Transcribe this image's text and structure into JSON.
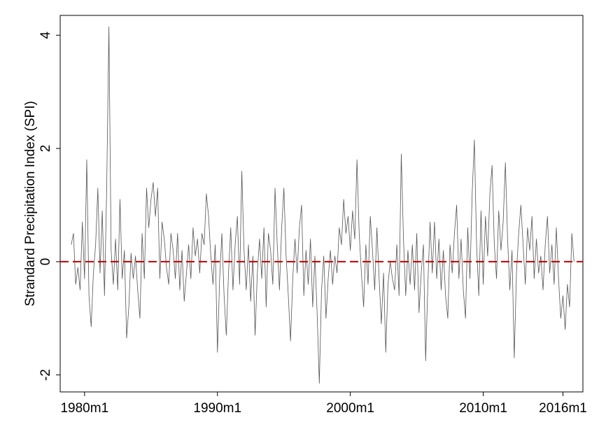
{
  "chart_data": {
    "type": "line",
    "y_label": "Strandard Precipitation Index (SPI)",
    "x": [
      228,
      230,
      232,
      234,
      236,
      238,
      240,
      242,
      244,
      246,
      248,
      250,
      252,
      254,
      256,
      258,
      260,
      262,
      264,
      266,
      268,
      270,
      272,
      274,
      276,
      278,
      280,
      282,
      284,
      286,
      288,
      290,
      292,
      294,
      296,
      298,
      300,
      302,
      304,
      306,
      308,
      310,
      312,
      314,
      316,
      318,
      320,
      322,
      324,
      326,
      328,
      330,
      332,
      334,
      336,
      338,
      340,
      342,
      344,
      346,
      348,
      350,
      352,
      354,
      356,
      358,
      360,
      362,
      364,
      366,
      368,
      370,
      372,
      374,
      376,
      378,
      380,
      382,
      384,
      386,
      388,
      390,
      392,
      394,
      396,
      398,
      400,
      402,
      404,
      406,
      408,
      410,
      412,
      414,
      416,
      418,
      420,
      422,
      424,
      426,
      428,
      430,
      432,
      434,
      436,
      438,
      440,
      442,
      444,
      446,
      448,
      450,
      452,
      454,
      456,
      458,
      460,
      462,
      464,
      466,
      468,
      470,
      472,
      474,
      476,
      478,
      480,
      482,
      484,
      486,
      488,
      490,
      492,
      494,
      496,
      498,
      500,
      502,
      504,
      506,
      508,
      510,
      512,
      514,
      516,
      518,
      520,
      522,
      524,
      526,
      528,
      530,
      532,
      534,
      536,
      538,
      540,
      542,
      544,
      546,
      548,
      550,
      552,
      554,
      556,
      558,
      560,
      562,
      564,
      566,
      568,
      570,
      572,
      574,
      576,
      578,
      580,
      582,
      584,
      586,
      588,
      590,
      592,
      594,
      596,
      598,
      600,
      602,
      604,
      606,
      608,
      610,
      612,
      614,
      616,
      618,
      620,
      622,
      624,
      626,
      628,
      630,
      632,
      634,
      636,
      638,
      640,
      642,
      644,
      646,
      648,
      650,
      652,
      654,
      656,
      658,
      660,
      662,
      664,
      666,
      668,
      670,
      672,
      674,
      676,
      678,
      680,
      682
    ],
    "series": [
      {
        "color": "#555555",
        "values": [
          0.3,
          0.5,
          -0.4,
          -0.1,
          -0.5,
          0.7,
          -0.3,
          1.8,
          -0.6,
          -1.15,
          -0.2,
          0.3,
          1.3,
          -0.2,
          0.9,
          -0.6,
          1.3,
          4.15,
          0.2,
          -0.4,
          0.4,
          -0.5,
          1.1,
          -0.3,
          0.2,
          -1.35,
          -0.8,
          0.15,
          -0.3,
          0.1,
          -0.5,
          -1.0,
          0.5,
          -0.3,
          1.3,
          0.6,
          1.1,
          1.4,
          0.8,
          1.3,
          -0.3,
          0.7,
          0.4,
          -0.1,
          -0.4,
          0.5,
          0.2,
          -0.3,
          0.5,
          -0.5,
          0.2,
          -0.7,
          -0.2,
          0.3,
          -0.3,
          0.6,
          0.1,
          0.4,
          -0.2,
          0.5,
          0.3,
          1.2,
          0.8,
          0.1,
          -0.4,
          0.3,
          -1.6,
          -0.3,
          0.5,
          -0.6,
          -1.3,
          -0.2,
          0.6,
          -0.5,
          0.3,
          0.8,
          -0.4,
          1.6,
          0.2,
          -0.5,
          0.3,
          -0.7,
          0.1,
          -1.3,
          -0.2,
          0.4,
          -0.3,
          0.6,
          -0.8,
          0.5,
          0.2,
          -0.4,
          1.3,
          0.3,
          -0.5,
          0.6,
          1.3,
          0.1,
          -0.6,
          -1.4,
          -0.3,
          0.4,
          -0.2,
          0.6,
          1.0,
          -0.6,
          0.2,
          -0.4,
          0.4,
          -0.8,
          0.1,
          -0.9,
          -2.15,
          -0.5,
          0.1,
          -1.0,
          -0.3,
          0.2,
          -0.4,
          0.1,
          -0.2,
          0.6,
          0.3,
          1.1,
          0.5,
          0.8,
          0.2,
          0.9,
          0.4,
          1.8,
          0.5,
          -0.2,
          -0.8,
          0.3,
          -0.4,
          0.8,
          0.2,
          -0.5,
          0.6,
          -0.3,
          -1.1,
          -0.2,
          -1.6,
          -0.4,
          0.0,
          -0.3,
          -0.5,
          0.3,
          -0.6,
          1.9,
          0.4,
          -0.6,
          0.2,
          -0.4,
          0.3,
          -0.5,
          0.5,
          -0.9,
          -0.2,
          0.3,
          -1.75,
          -0.4,
          0.7,
          -0.2,
          0.7,
          -0.3,
          0.4,
          -0.5,
          0.2,
          -0.6,
          -1.0,
          0.3,
          -0.2,
          0.5,
          1.0,
          -0.3,
          0.4,
          -0.5,
          -1.0,
          0.6,
          -0.3,
          1.2,
          2.15,
          0.3,
          -0.6,
          0.9,
          -0.4,
          0.8,
          0.1,
          1.2,
          1.7,
          0.3,
          -0.3,
          0.9,
          0.2,
          0.7,
          1.75,
          0.4,
          -0.5,
          0.2,
          -1.7,
          -0.2,
          0.5,
          1.0,
          0.3,
          -0.4,
          0.6,
          0.2,
          0.8,
          -0.3,
          0.4,
          -0.2,
          0.1,
          -0.5,
          0.3,
          0.8,
          -0.2,
          0.3,
          -0.4,
          0.6,
          -0.3,
          -1.0,
          -0.6,
          -1.2,
          -0.4,
          -0.8,
          0.5,
          0.0
        ]
      }
    ],
    "xlim": [
      218,
      690
    ],
    "xticks": [
      {
        "value": 240,
        "label": "1980m1"
      },
      {
        "value": 360,
        "label": "1990m1"
      },
      {
        "value": 480,
        "label": "2000m1"
      },
      {
        "value": 600,
        "label": "2010m1"
      },
      {
        "value": 672,
        "label": "2016m1"
      }
    ],
    "ylim": [
      -2.3,
      4.35
    ],
    "yticks": [
      -2,
      0,
      2,
      4
    ],
    "reference_line": {
      "value": 0,
      "color": "#c00000",
      "dashed": true
    },
    "grid": false
  }
}
